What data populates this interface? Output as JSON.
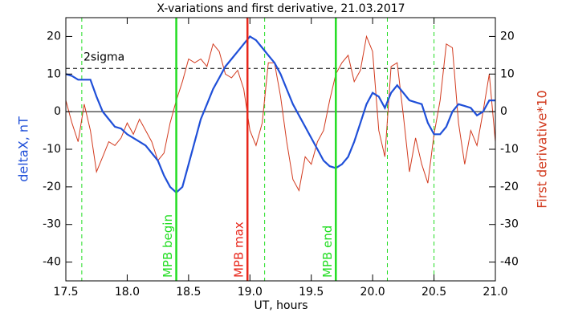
{
  "chart_data": {
    "type": "line",
    "title": "X-variations and first derivative, 21.03.2017",
    "xlabel": "UT, hours",
    "ylabel": "deltaX, nT",
    "y2label": "First derivative*10",
    "x": [
      17.5,
      17.55,
      17.6,
      17.65,
      17.7,
      17.75,
      17.8,
      17.85,
      17.9,
      17.95,
      18.0,
      18.05,
      18.1,
      18.15,
      18.2,
      18.25,
      18.3,
      18.35,
      18.4,
      18.45,
      18.5,
      18.55,
      18.6,
      18.65,
      18.7,
      18.75,
      18.8,
      18.85,
      18.9,
      18.95,
      19.0,
      19.05,
      19.1,
      19.15,
      19.2,
      19.25,
      19.3,
      19.35,
      19.4,
      19.45,
      19.5,
      19.55,
      19.6,
      19.65,
      19.7,
      19.75,
      19.8,
      19.85,
      19.9,
      19.95,
      20.0,
      20.05,
      20.1,
      20.15,
      20.2,
      20.25,
      20.3,
      20.35,
      20.4,
      20.45,
      20.5,
      20.55,
      20.6,
      20.65,
      20.7,
      20.75,
      20.8,
      20.85,
      20.9,
      20.95,
      21.0
    ],
    "series": [
      {
        "name": "deltaX",
        "color": "#1f4fd8",
        "width": 2.2,
        "values": [
          10,
          9.5,
          8.5,
          8.5,
          8.5,
          4,
          0,
          -2,
          -4,
          -4.5,
          -6,
          -7,
          -8,
          -9,
          -11,
          -13,
          -17,
          -20,
          -21.5,
          -20,
          -14,
          -8,
          -2,
          2,
          6,
          9,
          12,
          14,
          16,
          18,
          20,
          19,
          17,
          15,
          13,
          10,
          6,
          2,
          -1,
          -4,
          -7,
          -10,
          -13,
          -14.5,
          -15,
          -14,
          -12,
          -8,
          -3,
          2,
          5,
          4,
          1,
          5,
          7,
          5,
          3,
          2.5,
          2,
          -3,
          -6,
          -6,
          -4,
          0,
          2,
          1.5,
          1,
          -1,
          0,
          3,
          3
        ]
      },
      {
        "name": "First derivative*10",
        "color": "#d23a1e",
        "width": 1,
        "axis": "y2",
        "values": [
          3,
          -3,
          -8,
          2,
          -5,
          -16,
          -12,
          -8,
          -9,
          -7,
          -3,
          -6,
          -2,
          -5,
          -8,
          -13,
          -11,
          -3,
          3,
          8,
          14,
          13,
          14,
          12,
          18,
          16,
          10,
          9,
          11,
          6,
          -5,
          -9,
          -3,
          13,
          13,
          4,
          -8,
          -18,
          -21,
          -12,
          -14,
          -8,
          -5,
          3,
          10,
          13,
          15,
          8,
          11,
          20,
          16,
          -5,
          -12,
          12,
          13,
          -1,
          -16,
          -7,
          -14,
          -19,
          -6,
          3,
          18,
          17,
          -3,
          -14,
          -5,
          -9,
          0,
          10,
          -8
        ]
      }
    ],
    "xlim": [
      17.5,
      21.0
    ],
    "xticks": [
      17.5,
      {
        "value": 18,
        "label": "18.0"
      },
      18.5,
      {
        "value": 19,
        "label": "19.0"
      },
      19.5,
      {
        "value": 20,
        "label": "20.0"
      },
      20.5,
      {
        "value": 21,
        "label": "21.0"
      }
    ],
    "ylim": [
      -45,
      25
    ],
    "yticks": [
      -40,
      -30,
      -20,
      -10,
      0,
      10,
      20
    ],
    "y2lim": [
      -45,
      25
    ],
    "y2ticks": [
      -40,
      -30,
      -20,
      -10,
      0,
      10,
      20
    ],
    "threshold": {
      "label": "2sigma",
      "value": 11.5
    },
    "markers": [
      {
        "label": "MPB begin",
        "value": 18.4,
        "color": "#22dd22"
      },
      {
        "label": "MPB max",
        "value": 18.98,
        "color": "#e8261a"
      },
      {
        "label": "MPB end",
        "value": 19.7,
        "color": "#22dd22"
      }
    ],
    "dashed_lines": [
      17.63,
      19.12,
      20.12,
      20.5
    ],
    "dashed_color": "#22dd22"
  }
}
